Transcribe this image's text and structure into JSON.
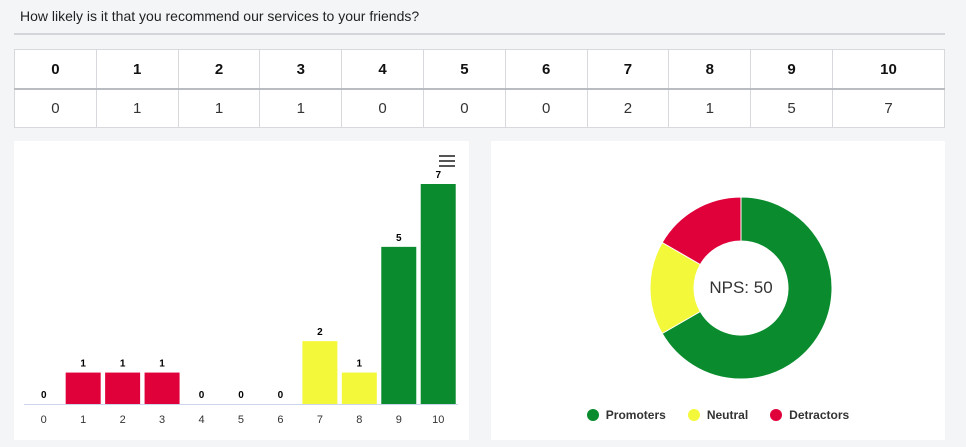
{
  "question": "How likely is it that you recommend our services to your friends?",
  "score_table": {
    "headers": [
      "0",
      "1",
      "2",
      "3",
      "4",
      "5",
      "6",
      "7",
      "8",
      "9",
      "10"
    ],
    "counts": [
      "0",
      "1",
      "1",
      "1",
      "0",
      "0",
      "0",
      "2",
      "1",
      "5",
      "7"
    ]
  },
  "colors": {
    "detractor": "#e0003a",
    "neutral": "#f4f83a",
    "promoter": "#0a8c2e"
  },
  "chart_data": [
    {
      "type": "bar",
      "categories": [
        "0",
        "1",
        "2",
        "3",
        "4",
        "5",
        "6",
        "7",
        "8",
        "9",
        "10"
      ],
      "values": [
        0,
        1,
        1,
        1,
        0,
        0,
        0,
        2,
        1,
        5,
        7
      ],
      "bar_groups": [
        "zero",
        "detractor",
        "detractor",
        "detractor",
        "zero",
        "zero",
        "zero",
        "neutral",
        "neutral",
        "promoter",
        "promoter"
      ],
      "ylim": [
        0,
        7
      ],
      "grid": false,
      "menu_icon": "hamburger-icon"
    },
    {
      "type": "pie",
      "donut": true,
      "center_label": "NPS: 50",
      "labels": [
        "Promoters",
        "Neutral",
        "Detractors"
      ],
      "values": [
        12,
        3,
        3
      ],
      "legend_position": "bottom"
    }
  ]
}
